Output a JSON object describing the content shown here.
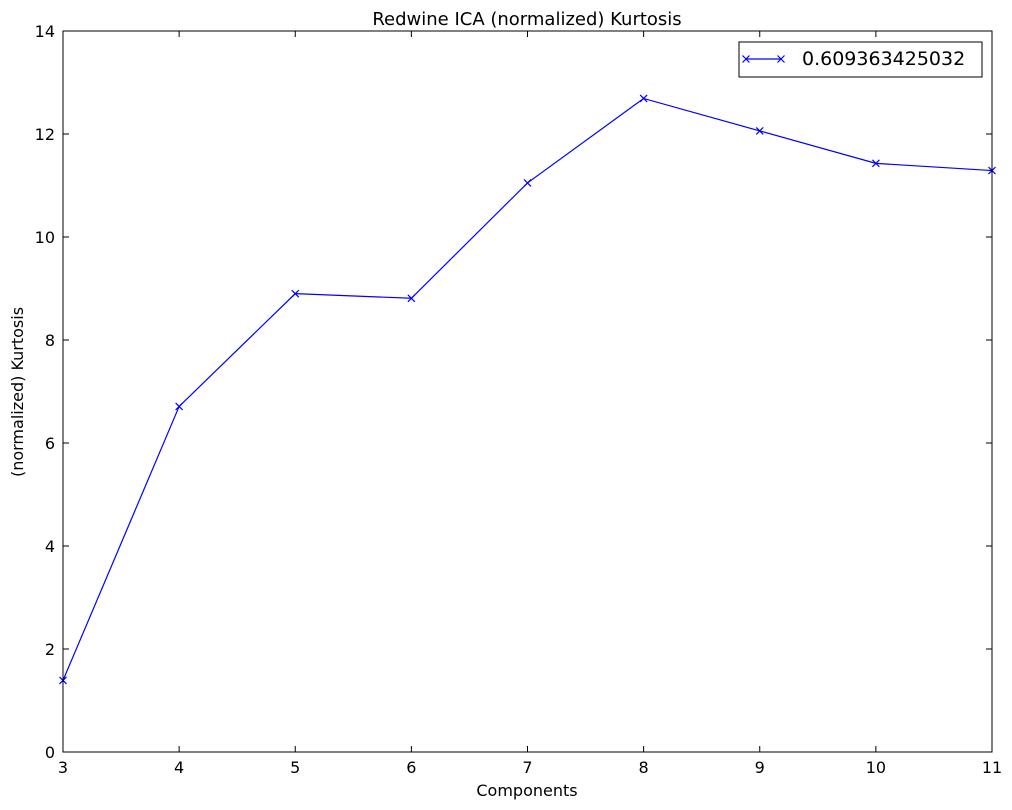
{
  "chart_data": {
    "type": "line",
    "title": "Redwine ICA (normalized) Kurtosis",
    "xlabel": "Components",
    "ylabel": "(normalized) Kurtosis",
    "xlim": [
      3,
      11
    ],
    "ylim": [
      0,
      14
    ],
    "x_ticks": [
      3,
      4,
      5,
      6,
      7,
      8,
      9,
      10,
      11
    ],
    "y_ticks": [
      0,
      2,
      4,
      6,
      8,
      10,
      12,
      14
    ],
    "grid": false,
    "legend_position": "top-right",
    "series": [
      {
        "name": "0.609363425032",
        "color": "#0000ff",
        "marker": "x",
        "x": [
          3,
          4,
          5,
          6,
          7,
          8,
          9,
          10,
          11
        ],
        "y": [
          1.39,
          6.71,
          8.9,
          8.81,
          11.05,
          12.69,
          12.06,
          11.43,
          11.29
        ]
      }
    ]
  }
}
